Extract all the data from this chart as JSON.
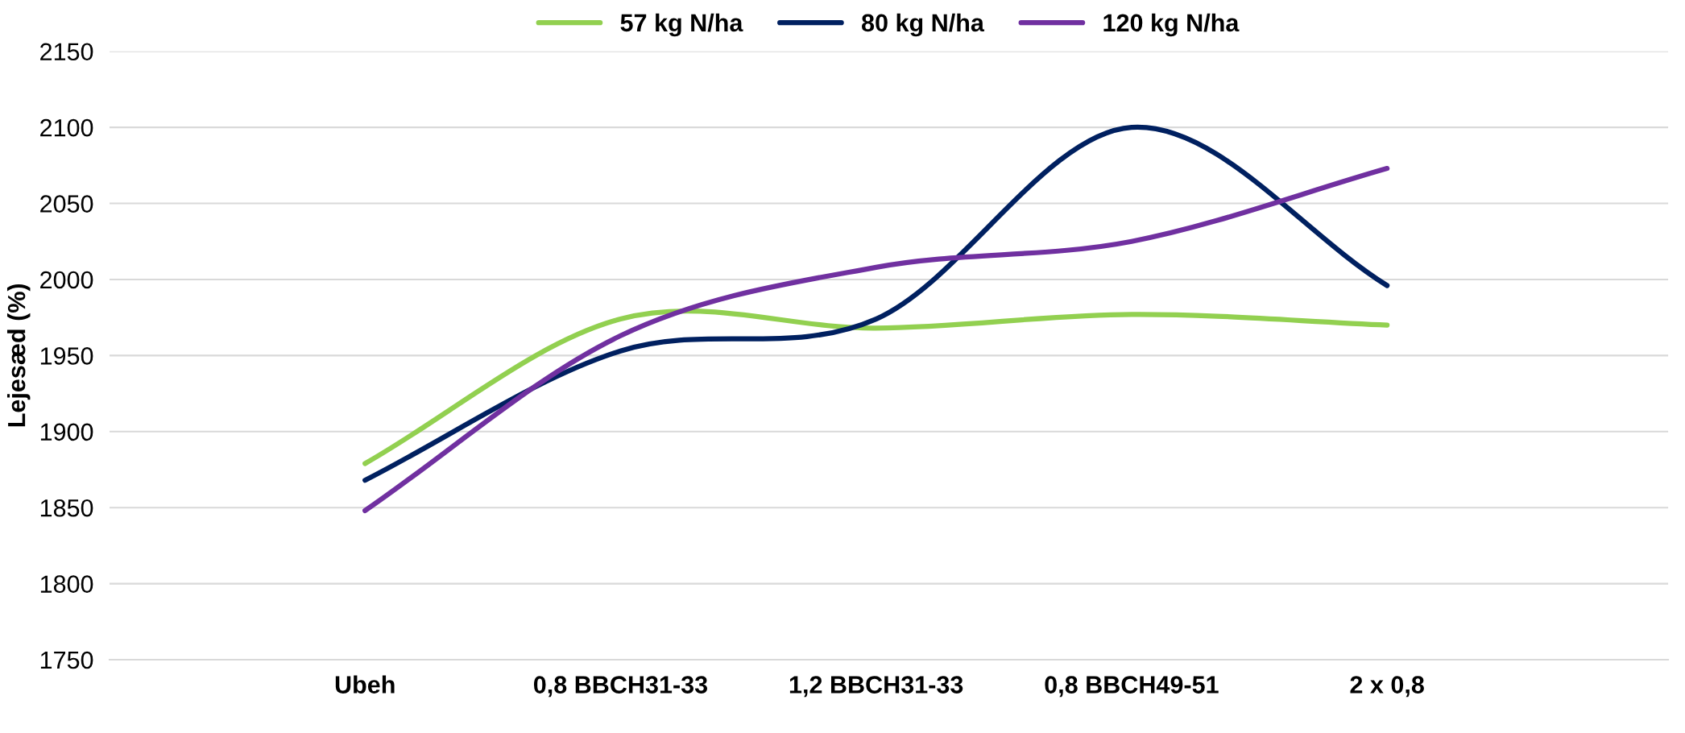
{
  "chart_data": {
    "type": "line",
    "ylabel": "Lejesæd (%)",
    "categories": [
      "Ubeh",
      "0,8 BBCH31-33",
      "1,2 BBCH31-33",
      "0,8 BBCH49-51",
      "2 x 0,8"
    ],
    "series": [
      {
        "name": "57 kg N/ha",
        "color": "#92d050",
        "values": [
          1879,
          1974,
          1968,
          1977,
          1970
        ]
      },
      {
        "name": "80 kg N/ha",
        "color": "#002060",
        "values": [
          1868,
          1953,
          1974,
          2100,
          1996
        ]
      },
      {
        "name": "120 kg N/ha",
        "color": "#7030a0",
        "values": [
          1848,
          1963,
          2008,
          2025,
          2073
        ]
      }
    ],
    "ylim": [
      1750,
      2150
    ],
    "yticks": [
      1750,
      1800,
      1850,
      1900,
      1950,
      2000,
      2050,
      2100,
      2150
    ],
    "grid": "y",
    "legend": "top",
    "marker": "none",
    "line_style": "solid"
  }
}
